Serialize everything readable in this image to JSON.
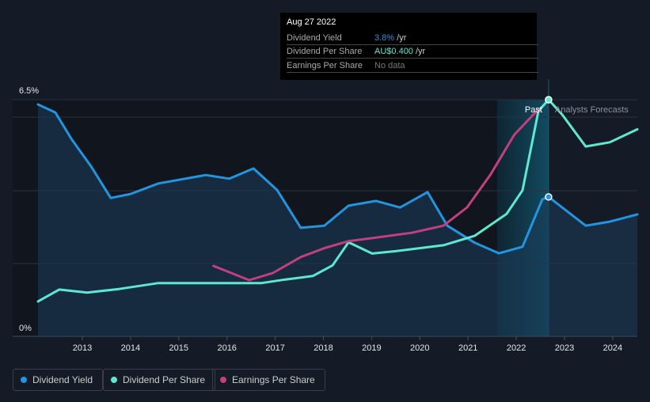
{
  "chart_data": {
    "type": "line",
    "xlim": [
      2012,
      2024.5
    ],
    "x_ticks": [
      "2013",
      "2014",
      "2015",
      "2016",
      "2017",
      "2018",
      "2019",
      "2020",
      "2021",
      "2022",
      "2023",
      "2024"
    ],
    "y_tick_labels": [
      "6.5%",
      "0%"
    ],
    "ylim": [
      0,
      6.5
    ],
    "region_labels": {
      "past": "Past",
      "forecast": "Analysts Forecasts"
    },
    "series": [
      {
        "name": "Dividend Yield",
        "unit": "%",
        "color": "#2394df",
        "points": [
          [
            2012.08,
            6.37
          ],
          [
            2012.44,
            6.15
          ],
          [
            2012.77,
            5.43
          ],
          [
            2013.18,
            4.67
          ],
          [
            2013.59,
            3.8
          ],
          [
            2014.0,
            3.91
          ],
          [
            2014.58,
            4.2
          ],
          [
            2015.56,
            4.43
          ],
          [
            2016.05,
            4.33
          ],
          [
            2016.55,
            4.61
          ],
          [
            2017.04,
            4.02
          ],
          [
            2017.53,
            2.98
          ],
          [
            2018.02,
            3.04
          ],
          [
            2018.52,
            3.59
          ],
          [
            2019.09,
            3.72
          ],
          [
            2019.59,
            3.54
          ],
          [
            2020.16,
            3.96
          ],
          [
            2020.57,
            3.04
          ],
          [
            2021.14,
            2.57
          ],
          [
            2021.64,
            2.28
          ],
          [
            2022.13,
            2.46
          ],
          [
            2022.54,
            3.76
          ],
          [
            2022.67,
            3.83
          ],
          [
            2023.44,
            3.04
          ],
          [
            2023.94,
            3.15
          ],
          [
            2024.51,
            3.35
          ]
        ]
      },
      {
        "name": "Dividend Per Share",
        "unit": "AU$",
        "color": "#5ee8d0",
        "points": [
          [
            2012.08,
            0.059
          ],
          [
            2012.52,
            0.079
          ],
          [
            2013.1,
            0.074
          ],
          [
            2013.76,
            0.08
          ],
          [
            2014.58,
            0.09
          ],
          [
            2016.72,
            0.09
          ],
          [
            2017.21,
            0.096
          ],
          [
            2017.78,
            0.102
          ],
          [
            2018.19,
            0.12
          ],
          [
            2018.52,
            0.159
          ],
          [
            2019.01,
            0.14
          ],
          [
            2019.5,
            0.144
          ],
          [
            2020.49,
            0.154
          ],
          [
            2021.14,
            0.17
          ],
          [
            2021.8,
            0.207
          ],
          [
            2022.13,
            0.247
          ],
          [
            2022.46,
            0.381
          ],
          [
            2022.67,
            0.4
          ],
          [
            2022.95,
            0.375
          ],
          [
            2023.44,
            0.321
          ],
          [
            2023.94,
            0.328
          ],
          [
            2024.51,
            0.35
          ]
        ]
      },
      {
        "name": "Earnings Per Share",
        "unit": "AU$",
        "color": "#c2407f",
        "points": [
          [
            2015.72,
            0.119
          ],
          [
            2016.46,
            0.095
          ],
          [
            2016.95,
            0.107
          ],
          [
            2017.53,
            0.134
          ],
          [
            2018.02,
            0.149
          ],
          [
            2018.52,
            0.161
          ],
          [
            2019.09,
            0.167
          ],
          [
            2019.83,
            0.175
          ],
          [
            2020.49,
            0.187
          ],
          [
            2020.98,
            0.218
          ],
          [
            2021.47,
            0.274
          ],
          [
            2021.96,
            0.341
          ],
          [
            2022.46,
            0.384
          ]
        ]
      }
    ]
  },
  "tooltip": {
    "date": "Aug 27 2022",
    "rows": [
      {
        "label": "Dividend Yield",
        "value": "3.8%",
        "suffix": " /yr",
        "color": "#2394df"
      },
      {
        "label": "Dividend Per Share",
        "value": "AU$0.400",
        "suffix": " /yr",
        "color": "#5ee8d0"
      },
      {
        "label": "Earnings Per Share",
        "value": "No data",
        "suffix": "",
        "color": "#777777"
      }
    ]
  },
  "legend": [
    {
      "label": "Dividend Yield",
      "color": "#2394df"
    },
    {
      "label": "Dividend Per Share",
      "color": "#5ee8d0"
    },
    {
      "label": "Earnings Per Share",
      "color": "#c2407f"
    }
  ]
}
